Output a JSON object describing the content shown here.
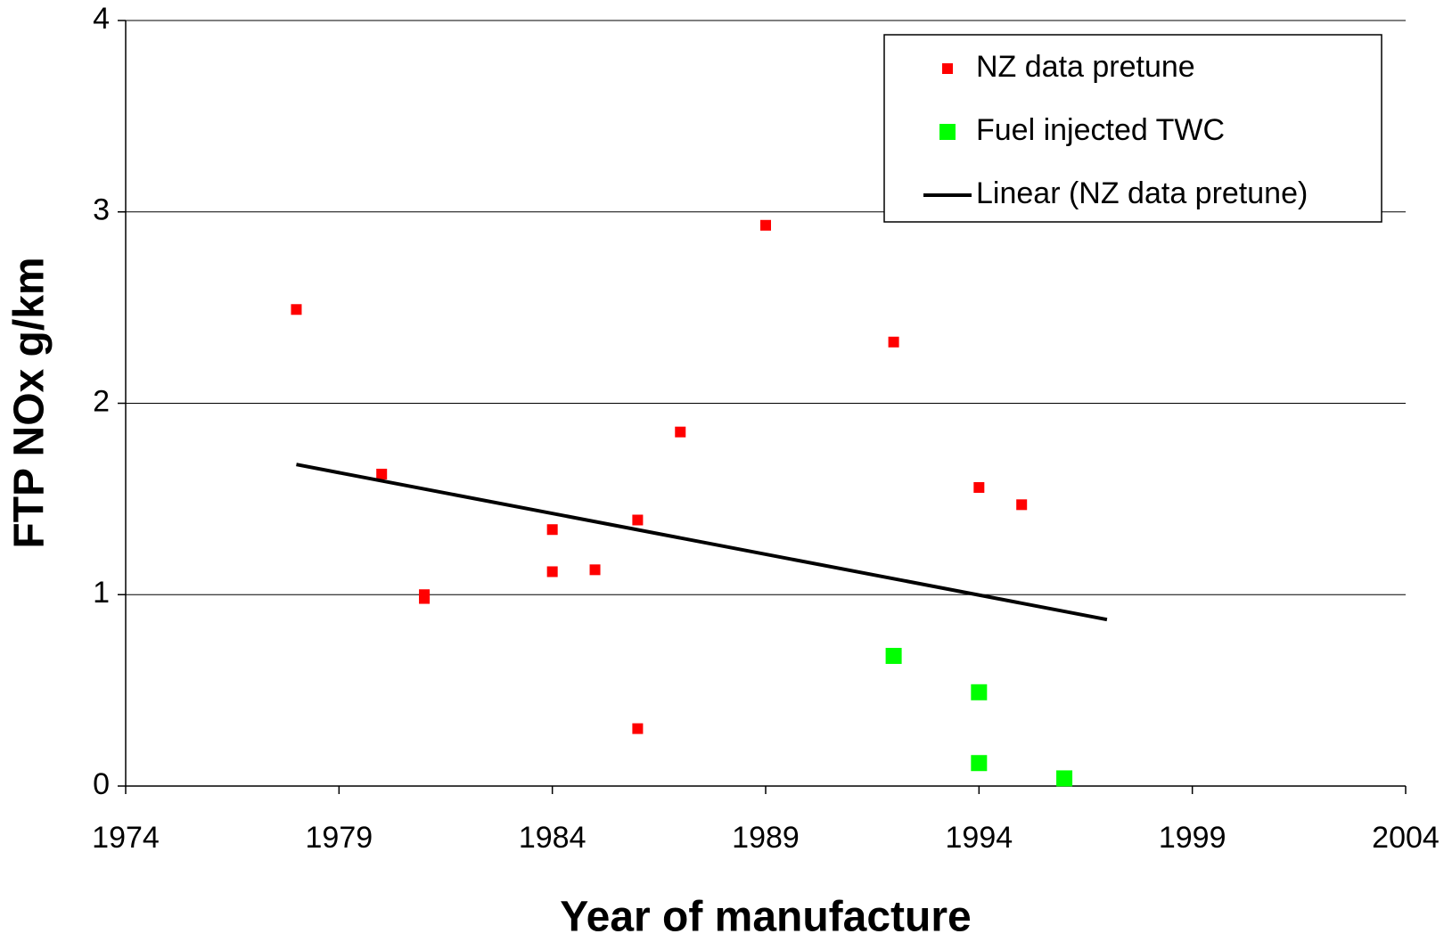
{
  "chart_data": {
    "type": "scatter",
    "xlabel": "Year of manufacture",
    "ylabel": "FTP NOx g/km",
    "xlim": [
      1974,
      2004
    ],
    "xticks": [
      1974,
      1979,
      1984,
      1989,
      1994,
      1999,
      2004
    ],
    "ylim": [
      0,
      4
    ],
    "yticks": [
      0,
      1,
      2,
      3,
      4
    ],
    "grid": true,
    "legend": "upper right",
    "series": [
      {
        "name": "NZ data pretune",
        "type": "scatter",
        "color": "#ff0000",
        "x": [
          1978,
          1980,
          1981,
          1981,
          1984,
          1984,
          1985,
          1986,
          1986,
          1987,
          1989,
          1992,
          1994,
          1995
        ],
        "values": [
          2.49,
          1.63,
          1.0,
          0.98,
          1.34,
          1.12,
          1.13,
          1.39,
          0.3,
          1.85,
          2.93,
          2.32,
          1.56,
          1.47
        ]
      },
      {
        "name": "Fuel injected TWC",
        "type": "scatter",
        "color": "#00ff00",
        "x": [
          1992,
          1994,
          1994,
          1996
        ],
        "values": [
          0.68,
          0.49,
          0.12,
          0.04
        ]
      },
      {
        "name": "Linear (NZ data pretune)",
        "type": "line",
        "color": "#000000",
        "x": [
          1978,
          1997
        ],
        "values": [
          1.68,
          0.87
        ]
      }
    ]
  }
}
